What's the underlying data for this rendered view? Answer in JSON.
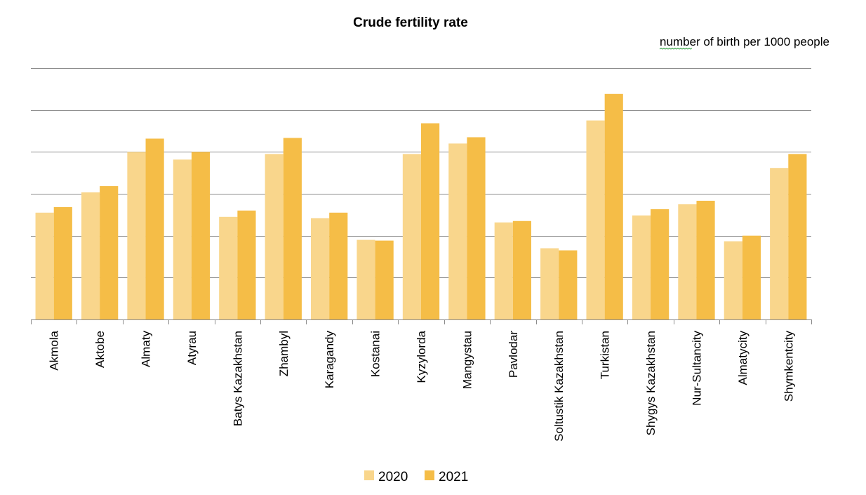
{
  "chart_data": {
    "type": "bar",
    "title": "Crude fertility rate",
    "unit_label": "number of birth per 1000 people",
    "categories": [
      "Akmola",
      "Aktobe",
      "Almaty",
      "Atyrau",
      "Batys Kazakhstan",
      "Zhambyl",
      "Karagandy",
      "Kostanai",
      "Kyzylorda",
      "Mangystau",
      "Pavlodar",
      "Soltustik Kazakhstan",
      "Turkistan",
      "Shygys Kazakhstan",
      "Nur-Sultancity",
      "Almatycity",
      "Shymkentcity"
    ],
    "series": [
      {
        "name": "2020",
        "color": "#f9d68c",
        "values": [
          15.3,
          18.2,
          24.0,
          22.9,
          14.7,
          23.7,
          14.5,
          11.4,
          23.7,
          25.2,
          13.9,
          10.2,
          28.5,
          14.9,
          16.5,
          11.2,
          21.7
        ]
      },
      {
        "name": "2021",
        "color": "#f5bd47",
        "values": [
          16.1,
          19.1,
          25.9,
          24.0,
          15.6,
          26.0,
          15.3,
          11.3,
          28.1,
          26.1,
          14.1,
          9.9,
          32.3,
          15.8,
          17.0,
          12.0,
          23.7
        ]
      }
    ],
    "ylim": [
      0,
      36
    ],
    "y_gridlines": [
      0,
      6,
      12,
      18,
      24,
      30,
      36
    ],
    "y_tick_labels_shown": false,
    "grid": true,
    "legend_position": "bottom"
  }
}
